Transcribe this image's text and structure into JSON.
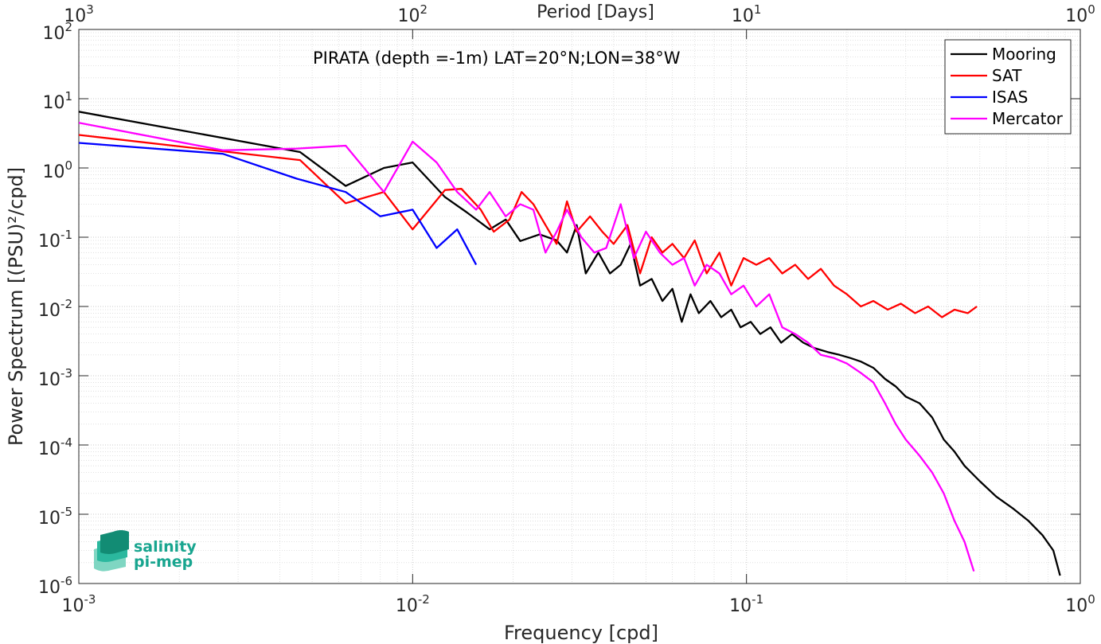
{
  "chart_data": {
    "type": "line",
    "title": "PIRATA (depth =-1m) LAT=20°N;LON=38°W",
    "xlabel": "Frequency [cpd]",
    "x2label": "Period [Days]",
    "ylabel": "Power Spectrum [(PSU)²/cpd]",
    "xscale": "log",
    "yscale": "log",
    "xlim": [
      0.001,
      1
    ],
    "ylim": [
      1e-06,
      100
    ],
    "grid": true,
    "legend_position": "top-right",
    "x_ticks": [
      {
        "value": 0.001,
        "base": "10",
        "exp": "-3"
      },
      {
        "value": 0.01,
        "base": "10",
        "exp": "-2"
      },
      {
        "value": 0.1,
        "base": "10",
        "exp": "-1"
      },
      {
        "value": 1,
        "base": "10",
        "exp": "0"
      }
    ],
    "x2_ticks": [
      {
        "value": 0.001,
        "base": "10",
        "exp": "3"
      },
      {
        "value": 0.01,
        "base": "10",
        "exp": "2"
      },
      {
        "value": 0.1,
        "base": "10",
        "exp": "1"
      },
      {
        "value": 1,
        "base": "10",
        "exp": "0"
      }
    ],
    "y_ticks": [
      {
        "value": 100,
        "base": "10",
        "exp": "2"
      },
      {
        "value": 10,
        "base": "10",
        "exp": "1"
      },
      {
        "value": 1,
        "base": "10",
        "exp": "0"
      },
      {
        "value": 0.1,
        "base": "10",
        "exp": "-1"
      },
      {
        "value": 0.01,
        "base": "10",
        "exp": "-2"
      },
      {
        "value": 0.001,
        "base": "10",
        "exp": "-3"
      },
      {
        "value": 0.0001,
        "base": "10",
        "exp": "-4"
      },
      {
        "value": 1e-05,
        "base": "10",
        "exp": "-5"
      },
      {
        "value": 1e-06,
        "base": "10",
        "exp": "-6"
      }
    ],
    "series": [
      {
        "name": "Mooring",
        "color": "#000000",
        "points": [
          [
            0.001,
            6.5
          ],
          [
            0.0046,
            1.7
          ],
          [
            0.0063,
            0.55
          ],
          [
            0.0082,
            1.0
          ],
          [
            0.01,
            1.2
          ],
          [
            0.0125,
            0.38
          ],
          [
            0.0145,
            0.23
          ],
          [
            0.017,
            0.13
          ],
          [
            0.019,
            0.18
          ],
          [
            0.021,
            0.088
          ],
          [
            0.024,
            0.11
          ],
          [
            0.027,
            0.09
          ],
          [
            0.029,
            0.06
          ],
          [
            0.031,
            0.15
          ],
          [
            0.033,
            0.03
          ],
          [
            0.036,
            0.06
          ],
          [
            0.039,
            0.03
          ],
          [
            0.042,
            0.04
          ],
          [
            0.045,
            0.08
          ],
          [
            0.048,
            0.02
          ],
          [
            0.052,
            0.025
          ],
          [
            0.056,
            0.012
          ],
          [
            0.06,
            0.018
          ],
          [
            0.064,
            0.006
          ],
          [
            0.068,
            0.015
          ],
          [
            0.072,
            0.008
          ],
          [
            0.078,
            0.012
          ],
          [
            0.084,
            0.007
          ],
          [
            0.09,
            0.009
          ],
          [
            0.096,
            0.005
          ],
          [
            0.103,
            0.006
          ],
          [
            0.11,
            0.004
          ],
          [
            0.118,
            0.005
          ],
          [
            0.127,
            0.003
          ],
          [
            0.137,
            0.004
          ],
          [
            0.148,
            0.003
          ],
          [
            0.16,
            0.0025
          ],
          [
            0.175,
            0.0022
          ],
          [
            0.19,
            0.002
          ],
          [
            0.205,
            0.0018
          ],
          [
            0.22,
            0.0016
          ],
          [
            0.24,
            0.0013
          ],
          [
            0.26,
            0.0009
          ],
          [
            0.28,
            0.0007
          ],
          [
            0.3,
            0.0005
          ],
          [
            0.33,
            0.0004
          ],
          [
            0.36,
            0.00025
          ],
          [
            0.39,
            0.00012
          ],
          [
            0.42,
            8e-05
          ],
          [
            0.45,
            5e-05
          ],
          [
            0.5,
            3e-05
          ],
          [
            0.56,
            1.8e-05
          ],
          [
            0.63,
            1.2e-05
          ],
          [
            0.7,
            8e-06
          ],
          [
            0.77,
            5e-06
          ],
          [
            0.83,
            3e-06
          ],
          [
            0.87,
            1.3e-06
          ]
        ]
      },
      {
        "name": "SAT",
        "color": "#ff0000",
        "points": [
          [
            0.001,
            3.0
          ],
          [
            0.0046,
            1.3
          ],
          [
            0.0063,
            0.31
          ],
          [
            0.0082,
            0.45
          ],
          [
            0.01,
            0.13
          ],
          [
            0.0125,
            0.48
          ],
          [
            0.014,
            0.5
          ],
          [
            0.016,
            0.25
          ],
          [
            0.0175,
            0.12
          ],
          [
            0.0195,
            0.18
          ],
          [
            0.0212,
            0.45
          ],
          [
            0.023,
            0.3
          ],
          [
            0.025,
            0.15
          ],
          [
            0.027,
            0.08
          ],
          [
            0.029,
            0.33
          ],
          [
            0.031,
            0.12
          ],
          [
            0.034,
            0.2
          ],
          [
            0.037,
            0.12
          ],
          [
            0.04,
            0.08
          ],
          [
            0.044,
            0.15
          ],
          [
            0.048,
            0.03
          ],
          [
            0.052,
            0.1
          ],
          [
            0.056,
            0.06
          ],
          [
            0.06,
            0.08
          ],
          [
            0.065,
            0.05
          ],
          [
            0.07,
            0.09
          ],
          [
            0.076,
            0.03
          ],
          [
            0.083,
            0.06
          ],
          [
            0.09,
            0.02
          ],
          [
            0.098,
            0.05
          ],
          [
            0.107,
            0.04
          ],
          [
            0.117,
            0.05
          ],
          [
            0.128,
            0.03
          ],
          [
            0.14,
            0.04
          ],
          [
            0.153,
            0.025
          ],
          [
            0.167,
            0.035
          ],
          [
            0.183,
            0.02
          ],
          [
            0.2,
            0.015
          ],
          [
            0.22,
            0.01
          ],
          [
            0.24,
            0.012
          ],
          [
            0.265,
            0.009
          ],
          [
            0.29,
            0.011
          ],
          [
            0.32,
            0.008
          ],
          [
            0.35,
            0.01
          ],
          [
            0.385,
            0.007
          ],
          [
            0.42,
            0.009
          ],
          [
            0.46,
            0.008
          ],
          [
            0.49,
            0.01
          ]
        ]
      },
      {
        "name": "ISAS",
        "color": "#0000ff",
        "points": [
          [
            0.001,
            2.3
          ],
          [
            0.0027,
            1.6
          ],
          [
            0.0045,
            0.7
          ],
          [
            0.0063,
            0.45
          ],
          [
            0.008,
            0.2
          ],
          [
            0.01,
            0.25
          ],
          [
            0.0118,
            0.07
          ],
          [
            0.0136,
            0.13
          ],
          [
            0.0155,
            0.04
          ]
        ]
      },
      {
        "name": "Mercator",
        "color": "#ff00ff",
        "points": [
          [
            0.001,
            4.5
          ],
          [
            0.0027,
            1.8
          ],
          [
            0.0045,
            1.9
          ],
          [
            0.0063,
            2.1
          ],
          [
            0.0082,
            0.45
          ],
          [
            0.01,
            2.4
          ],
          [
            0.0118,
            1.2
          ],
          [
            0.0136,
            0.45
          ],
          [
            0.0155,
            0.25
          ],
          [
            0.017,
            0.45
          ],
          [
            0.019,
            0.2
          ],
          [
            0.021,
            0.3
          ],
          [
            0.023,
            0.25
          ],
          [
            0.025,
            0.06
          ],
          [
            0.027,
            0.12
          ],
          [
            0.029,
            0.25
          ],
          [
            0.032,
            0.1
          ],
          [
            0.035,
            0.06
          ],
          [
            0.038,
            0.07
          ],
          [
            0.042,
            0.3
          ],
          [
            0.046,
            0.05
          ],
          [
            0.05,
            0.12
          ],
          [
            0.055,
            0.06
          ],
          [
            0.06,
            0.04
          ],
          [
            0.065,
            0.05
          ],
          [
            0.07,
            0.02
          ],
          [
            0.076,
            0.04
          ],
          [
            0.083,
            0.03
          ],
          [
            0.09,
            0.015
          ],
          [
            0.098,
            0.02
          ],
          [
            0.107,
            0.01
          ],
          [
            0.117,
            0.015
          ],
          [
            0.128,
            0.005
          ],
          [
            0.14,
            0.004
          ],
          [
            0.153,
            0.003
          ],
          [
            0.167,
            0.002
          ],
          [
            0.183,
            0.0018
          ],
          [
            0.2,
            0.0015
          ],
          [
            0.22,
            0.0011
          ],
          [
            0.24,
            0.0008
          ],
          [
            0.26,
            0.0004
          ],
          [
            0.28,
            0.0002
          ],
          [
            0.3,
            0.00012
          ],
          [
            0.33,
            7e-05
          ],
          [
            0.36,
            4e-05
          ],
          [
            0.39,
            2e-05
          ],
          [
            0.42,
            8e-06
          ],
          [
            0.45,
            4e-06
          ],
          [
            0.48,
            1.5e-06
          ]
        ]
      }
    ]
  },
  "logo": {
    "line1": "salinity",
    "line2": "pi-mep"
  }
}
